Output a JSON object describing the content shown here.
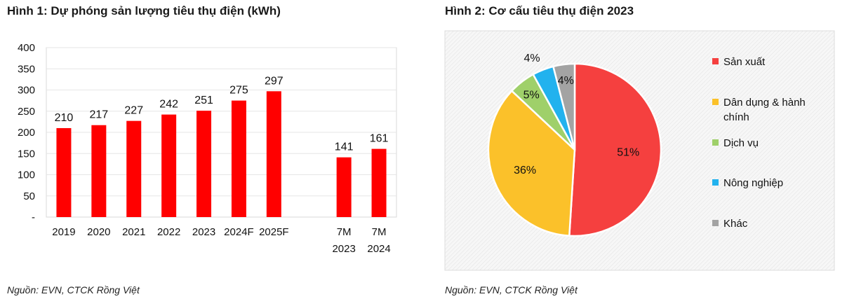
{
  "figure1": {
    "title": "Hình 1: Dự phóng sản lượng tiêu thụ điện (kWh)",
    "source": "Nguồn: EVN, CTCK Rồng Việt"
  },
  "figure2": {
    "title": "Hình 2: Cơ cấu tiêu thụ điện 2023",
    "source": "Nguồn: EVN, CTCK Rồng Việt"
  },
  "chart_data": [
    {
      "type": "bar",
      "title": "Hình 1: Dự phóng sản lượng tiêu thụ điện (kWh)",
      "categories": [
        [
          "2019"
        ],
        [
          "2020"
        ],
        [
          "2021"
        ],
        [
          "2022"
        ],
        [
          "2023"
        ],
        [
          "2024F"
        ],
        [
          "2025F"
        ],
        [
          ""
        ],
        [
          "7M",
          "2023"
        ],
        [
          "7M",
          "2024"
        ]
      ],
      "values": [
        210,
        217,
        227,
        242,
        251,
        275,
        297,
        null,
        141,
        161
      ],
      "yticks": [
        "-",
        "50",
        "100",
        "150",
        "200",
        "250",
        "300",
        "350",
        "400"
      ],
      "ylim": [
        0,
        400
      ],
      "grid": true,
      "color": "#ff0000"
    },
    {
      "type": "pie",
      "title": "Hình 2: Cơ cấu tiêu thụ điện 2023",
      "slices": [
        {
          "name": "Sản xuất",
          "value": 51,
          "label": "51%",
          "color": "#f5403f"
        },
        {
          "name": "Dân dụng & hành chính",
          "value": 36,
          "label": "36%",
          "color": "#fbc12a"
        },
        {
          "name": "Dịch vụ",
          "value": 5,
          "label": "5%",
          "color": "#9fd06a"
        },
        {
          "name": "Nông nghiệp",
          "value": 4,
          "label": "",
          "color": "#22b2ee"
        },
        {
          "name": "Khác",
          "value": 4,
          "label": "4%",
          "color": "#a3a3a3"
        }
      ],
      "extra_labels": [
        "4%"
      ],
      "legend_position": "right"
    }
  ]
}
